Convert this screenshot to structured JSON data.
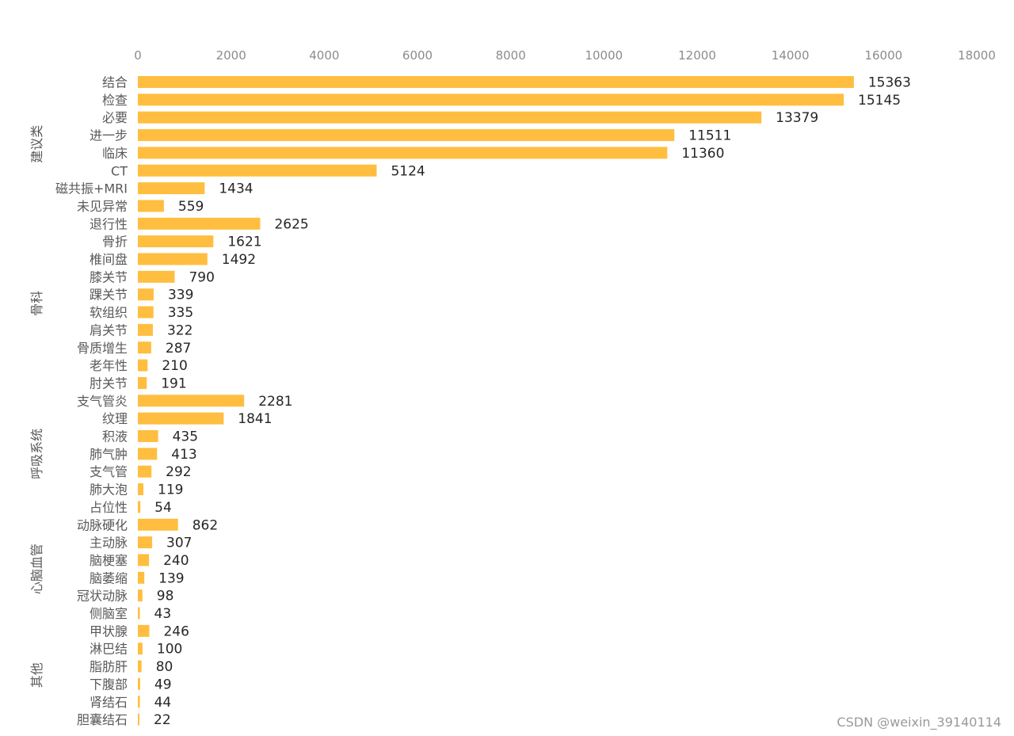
{
  "chart_data": {
    "type": "bar",
    "orientation": "horizontal",
    "title": "",
    "xlabel": "",
    "ylabel": "",
    "xlim": [
      0,
      18000
    ],
    "x_ticks": [
      "0",
      "2000",
      "4000",
      "6000",
      "8000",
      "10000",
      "12000",
      "14000",
      "16000",
      "18000"
    ],
    "x_axis_position": "top",
    "grid": false,
    "bar_color": "#FFBE3F",
    "groups": [
      {
        "name": "建议类",
        "items": [
          {
            "label": "结合",
            "value": 15363
          },
          {
            "label": "检查",
            "value": 15145
          },
          {
            "label": "必要",
            "value": 13379
          },
          {
            "label": "进一步",
            "value": 11511
          },
          {
            "label": "临床",
            "value": 11360
          },
          {
            "label": "CT",
            "value": 5124
          },
          {
            "label": "磁共振+MRI",
            "value": 1434
          },
          {
            "label": "未见异常",
            "value": 559
          }
        ]
      },
      {
        "name": "骨科",
        "items": [
          {
            "label": "退行性",
            "value": 2625
          },
          {
            "label": "骨折",
            "value": 1621
          },
          {
            "label": "椎间盘",
            "value": 1492
          },
          {
            "label": "膝关节",
            "value": 790
          },
          {
            "label": "踝关节",
            "value": 339
          },
          {
            "label": "软组织",
            "value": 335
          },
          {
            "label": "肩关节",
            "value": 322
          },
          {
            "label": "骨质增生",
            "value": 287
          },
          {
            "label": "老年性",
            "value": 210
          },
          {
            "label": "肘关节",
            "value": 191
          }
        ]
      },
      {
        "name": "呼吸系统",
        "items": [
          {
            "label": "支气管炎",
            "value": 2281
          },
          {
            "label": "纹理",
            "value": 1841
          },
          {
            "label": "积液",
            "value": 435
          },
          {
            "label": "肺气肿",
            "value": 413
          },
          {
            "label": "支气管",
            "value": 292
          },
          {
            "label": "肺大泡",
            "value": 119
          },
          {
            "label": "占位性",
            "value": 54
          }
        ]
      },
      {
        "name": "心脑血管",
        "items": [
          {
            "label": "动脉硬化",
            "value": 862
          },
          {
            "label": "主动脉",
            "value": 307
          },
          {
            "label": "脑梗塞",
            "value": 240
          },
          {
            "label": "脑萎缩",
            "value": 139
          },
          {
            "label": "冠状动脉",
            "value": 98
          },
          {
            "label": "侧脑室",
            "value": 43
          }
        ]
      },
      {
        "name": "其他",
        "items": [
          {
            "label": "甲状腺",
            "value": 246
          },
          {
            "label": "淋巴结",
            "value": 100
          },
          {
            "label": "脂肪肝",
            "value": 80
          },
          {
            "label": "下腹部",
            "value": 49
          },
          {
            "label": "肾结石",
            "value": 44
          },
          {
            "label": "胆囊结石",
            "value": 22
          }
        ]
      }
    ]
  },
  "watermark": "CSDN @weixin_39140114"
}
